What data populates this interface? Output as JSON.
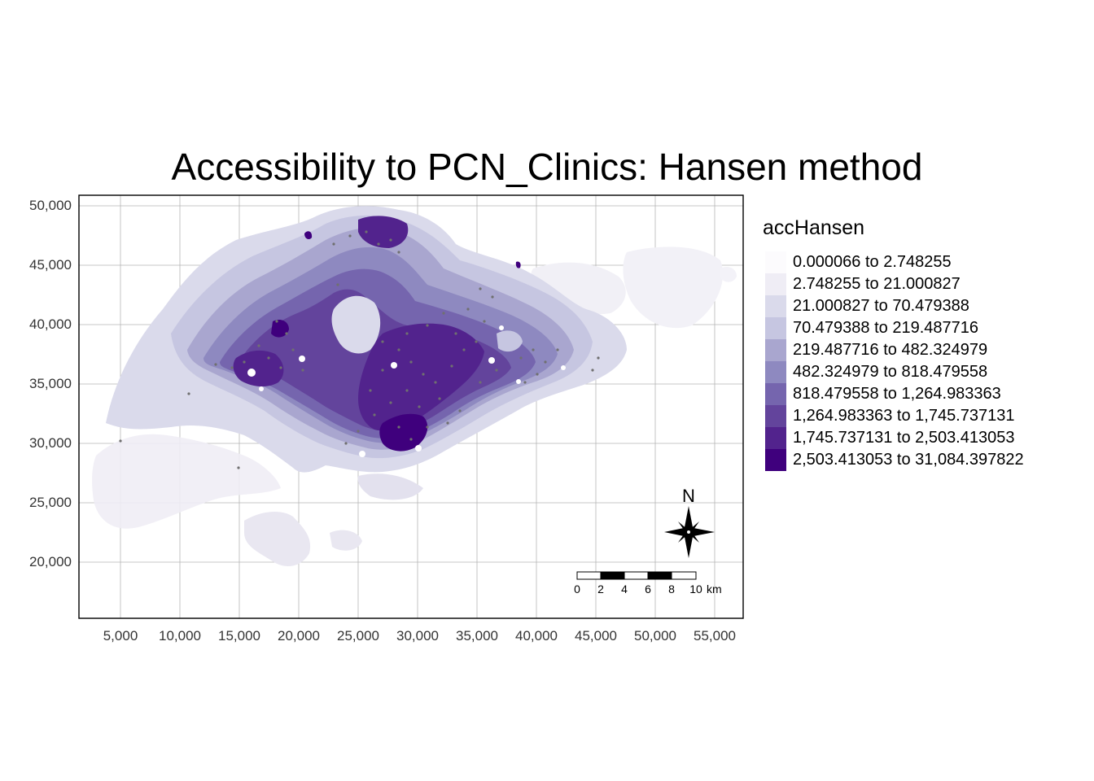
{
  "title": "Accessibility to PCN_Clinics: Hansen method",
  "axes": {
    "x_ticks": [
      "5,000",
      "10,000",
      "15,000",
      "20,000",
      "25,000",
      "30,000",
      "35,000",
      "40,000",
      "45,000",
      "50,000",
      "55,000"
    ],
    "y_ticks": [
      "50,000",
      "45,000",
      "40,000",
      "35,000",
      "30,000",
      "25,000",
      "20,000"
    ]
  },
  "legend": {
    "title": "accHansen",
    "items": [
      {
        "label": "0.000066 to 2.748255",
        "color": "#fcfbfd"
      },
      {
        "label": "2.748255 to 21.000827",
        "color": "#efedf5"
      },
      {
        "label": "21.000827 to 70.479388",
        "color": "#dadaeb"
      },
      {
        "label": "70.479388 to 219.487716",
        "color": "#c6c6e1"
      },
      {
        "label": "219.487716 to 482.324979",
        "color": "#a9a6cf"
      },
      {
        "label": "482.324979 to 818.479558",
        "color": "#8e89c0"
      },
      {
        "label": "818.479558 to 1,264.983363",
        "color": "#7565ae"
      },
      {
        "label": "1,264.983363 to 1,745.737131",
        "color": "#63449c"
      },
      {
        "label": "1,745.737131 to 2,503.413053",
        "color": "#52238d"
      },
      {
        "label": "2,503.413053 to 31,084.397822",
        "color": "#3f007d"
      }
    ]
  },
  "north_arrow": {
    "label": "N"
  },
  "scale_bar": {
    "labels": [
      "0",
      "2",
      "4",
      "6",
      "8",
      "10"
    ],
    "unit": "km"
  }
}
